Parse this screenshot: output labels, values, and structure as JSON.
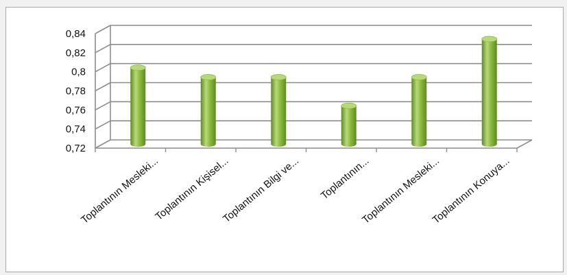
{
  "chart_data": {
    "type": "bar",
    "style": "3d-cylinder",
    "categories": [
      "Toplantının Mesleki...",
      "Toplantının Kişisel...",
      "Toplantının Bilgi ve...",
      "Toplantının...",
      "Toplantının Mesleki...",
      "Toplantının Konuya..."
    ],
    "values": [
      0.8,
      0.79,
      0.79,
      0.76,
      0.79,
      0.83
    ],
    "ylim": [
      0.72,
      0.84
    ],
    "yticks": [
      "0,72",
      "0,74",
      "0,76",
      "0,78",
      "0,8",
      "0,82",
      "0,84"
    ],
    "grid": true,
    "legend": "none",
    "title": "",
    "xlabel": "",
    "ylabel": "",
    "colors": {
      "bar_light": "#b8d97a",
      "bar_mid": "#8cbc3e",
      "bar_dark": "#5f8a22",
      "grid": "#8c8c8c",
      "wall": "#ffffff"
    }
  }
}
